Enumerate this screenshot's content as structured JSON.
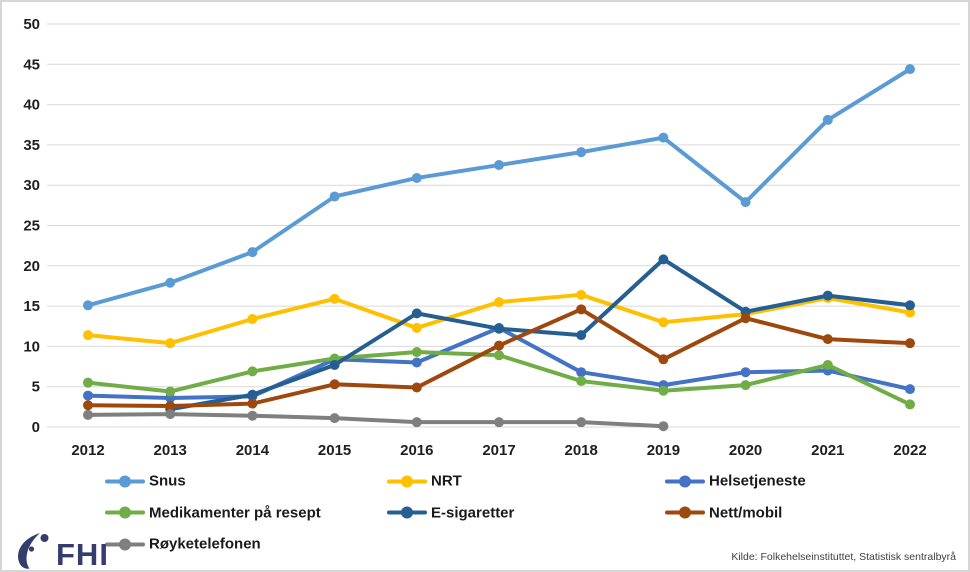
{
  "chart_data": {
    "type": "line",
    "x": [
      "2012",
      "2013",
      "2014",
      "2015",
      "2016",
      "2017",
      "2018",
      "2019",
      "2020",
      "2021",
      "2022"
    ],
    "series": [
      {
        "name": "Snus",
        "color": "#5B9BD5",
        "values": [
          15.1,
          17.9,
          21.7,
          28.6,
          30.9,
          32.5,
          34.1,
          35.9,
          27.9,
          38.1,
          44.4
        ]
      },
      {
        "name": "NRT",
        "color": "#FFC000",
        "values": [
          11.4,
          10.4,
          13.4,
          15.9,
          12.3,
          15.5,
          16.4,
          13.0,
          14.0,
          16.0,
          14.2
        ]
      },
      {
        "name": "Helsetjeneste",
        "color": "#4472C4",
        "values": [
          3.9,
          3.6,
          3.8,
          8.4,
          8.0,
          12.3,
          6.8,
          5.2,
          6.8,
          7.0,
          4.7
        ]
      },
      {
        "name": "Medikamenter på resept",
        "color": "#70AD47",
        "values": [
          5.5,
          4.4,
          6.9,
          8.5,
          9.3,
          8.9,
          5.7,
          4.5,
          5.2,
          7.7,
          2.8
        ]
      },
      {
        "name": "E-sigaretter",
        "color": "#255E91",
        "values": [
          null,
          2.2,
          4.0,
          7.7,
          14.1,
          12.2,
          11.4,
          20.8,
          14.3,
          16.3,
          15.1
        ]
      },
      {
        "name": "Nett/mobil",
        "color": "#9E480E",
        "values": [
          2.7,
          2.6,
          2.9,
          5.3,
          4.9,
          10.1,
          14.6,
          8.4,
          13.5,
          10.9,
          10.4
        ]
      },
      {
        "name": "Røyketelefonen",
        "color": "#7F7F7F",
        "values": [
          1.5,
          1.6,
          1.4,
          1.1,
          0.6,
          0.6,
          0.6,
          0.1,
          null,
          null,
          null
        ]
      }
    ],
    "title": "",
    "xlabel": "",
    "ylabel": "",
    "ylim": [
      0,
      50
    ],
    "ytick_step": 5,
    "grid": true,
    "legend_position": "bottom"
  },
  "legend": {
    "items": [
      {
        "label": "Snus",
        "series": 0,
        "col": 0,
        "row": 0
      },
      {
        "label": "NRT",
        "series": 1,
        "col": 1,
        "row": 0
      },
      {
        "label": "Helsetjeneste",
        "series": 2,
        "col": 2,
        "row": 0
      },
      {
        "label": "Medikamenter på resept",
        "series": 3,
        "col": 0,
        "row": 1
      },
      {
        "label": "E-sigaretter",
        "series": 4,
        "col": 1,
        "row": 1
      },
      {
        "label": "Nett/mobil",
        "series": 5,
        "col": 2,
        "row": 1
      },
      {
        "label": "Røyketelefonen",
        "series": 6,
        "col": 0,
        "row": 2
      }
    ]
  },
  "footer": {
    "logo_text": "FHI",
    "source": "Kilde: Folkehelseinstituttet, Statistisk sentralbyrå"
  }
}
